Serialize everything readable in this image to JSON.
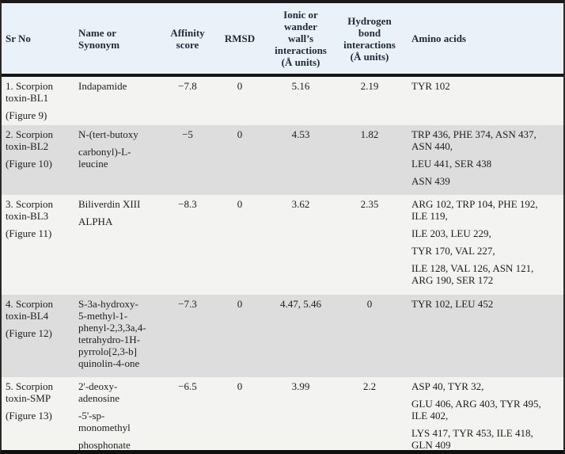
{
  "colors": {
    "header_bg": "#eaf1f9",
    "header_text": "#1e2a38",
    "body_text": "#1d1d1d",
    "row_light_bg": "#f3f3f2",
    "row_shaded_bg": "#dddddd",
    "rule_black": "#1a1a1a"
  },
  "table": {
    "headers": [
      {
        "id": "sr_no",
        "label": "Sr No"
      },
      {
        "id": "name",
        "label": "Name or\nSynonym"
      },
      {
        "id": "affinity",
        "label": "Affinity\nscore"
      },
      {
        "id": "rmsd",
        "label": "RMSD"
      },
      {
        "id": "ionic",
        "label": "Ionic or\nwander\nwall’s\ninteractions\n(Å units)"
      },
      {
        "id": "hbond",
        "label": "Hydrogen\nbond\ninteractions\n(Å units)"
      },
      {
        "id": "amino",
        "label": "Amino acids"
      }
    ],
    "rows": [
      {
        "sr_no": [
          "1. Scorpion\ntoxin-BL1",
          "(Figure 9)"
        ],
        "name": [
          "Indapamide"
        ],
        "affinity": "−7.8",
        "rmsd": "0",
        "ionic": "5.16",
        "hbond": "2.19",
        "amino_acids": [
          "TYR 102"
        ]
      },
      {
        "sr_no": [
          "2. Scorpion\ntoxin-BL2",
          "(Figure 10)"
        ],
        "name": [
          "N-(tert-butoxy",
          "carbonyl)-L-\nleucine"
        ],
        "affinity": "−5",
        "rmsd": "0",
        "ionic": "4.53",
        "hbond": "1.82",
        "amino_acids": [
          "TRP 436, PHE 374, ASN 437,\nASN 440,",
          "LEU 441, SER 438",
          "ASN 439"
        ]
      },
      {
        "sr_no": [
          "3. Scorpion\ntoxin-BL3",
          "(Figure 11)"
        ],
        "name": [
          "Biliverdin XIII",
          "ALPHA"
        ],
        "affinity": "−8.3",
        "rmsd": "0",
        "ionic": "3.62",
        "hbond": "2.35",
        "amino_acids": [
          "ARG 102, TRP 104, PHE 192,\nILE 119,",
          "ILE 203, LEU 229,",
          "TYR 170, VAL 227,",
          "ILE 128, VAL 126, ASN 121,\nARG 190, SER 172"
        ]
      },
      {
        "sr_no": [
          "4. Scorpion\ntoxin-BL4",
          "(Figure 12)"
        ],
        "name": [
          "S-3a-hydroxy-\n5-methyl-1-\nphenyl-2,3,3a,4-\ntetrahydro-1H-\npyrrolo[2,3-b]\nquinolin-4-one"
        ],
        "affinity": "−7.3",
        "rmsd": "0",
        "ionic": "4.47, 5.46",
        "hbond": "0",
        "amino_acids": [
          "TYR 102, LEU 452"
        ]
      },
      {
        "sr_no": [
          "5. Scorpion\ntoxin-SMP",
          "(Figure 13)"
        ],
        "name": [
          "2'-deoxy-\nadenosine",
          "-5'-sp-\nmonomethyl",
          "phosphonate"
        ],
        "affinity": "−6.5",
        "rmsd": "0",
        "ionic": "3.99",
        "hbond": "2.2",
        "amino_acids": [
          "ASP 40, TYR 32,",
          "GLU 406, ARG 403, TYR 495,\nILE 402,",
          "LYS 417, TYR 453, ILE 418,\nGLN 409"
        ]
      }
    ]
  }
}
